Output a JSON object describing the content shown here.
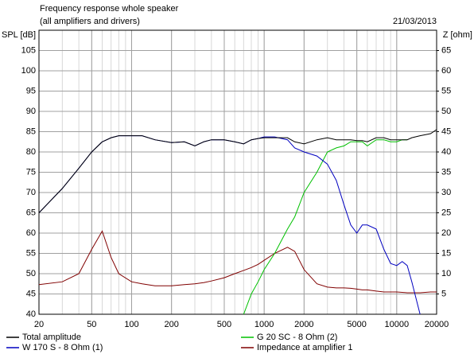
{
  "chart_data": {
    "type": "line",
    "title": "Frequency response whole speaker",
    "subtitle": "(all amplifiers and drivers)",
    "date": "21/03/2013",
    "y_label": "SPL [dB]",
    "y2_label": "Z [ohm]",
    "x_scale": "log",
    "grid": true,
    "legend": "bottom",
    "x": [
      20,
      30,
      40,
      50,
      60,
      70,
      80,
      100,
      120,
      150,
      200,
      250,
      300,
      350,
      400,
      500,
      600,
      700,
      800,
      900,
      1000,
      1200,
      1500,
      1700,
      2000,
      2500,
      3000,
      3500,
      4000,
      4500,
      5000,
      5500,
      6000,
      7000,
      8000,
      9000,
      10000,
      11000,
      12000,
      13000,
      15000,
      18000,
      20000
    ],
    "xlim": [
      20,
      20000
    ],
    "xticks": [
      20,
      50,
      100,
      200,
      500,
      1000,
      2000,
      5000,
      10000,
      20000
    ],
    "ylim": [
      40,
      110
    ],
    "yticks": [
      40,
      45,
      50,
      55,
      60,
      65,
      70,
      75,
      80,
      85,
      90,
      95,
      100,
      105
    ],
    "y2lim": [
      0,
      70
    ],
    "y2ticks": [
      5,
      10,
      15,
      20,
      25,
      30,
      35,
      40,
      45,
      50,
      55,
      60,
      65
    ],
    "series": [
      {
        "name": "Total amplitude",
        "color": "#000000",
        "values": [
          65,
          71,
          76,
          80,
          82.5,
          83.5,
          84,
          84,
          84,
          83,
          82.3,
          82.5,
          81.5,
          82.5,
          83,
          83,
          82.5,
          82,
          83,
          83.3,
          83.5,
          83.5,
          83.5,
          82.5,
          82,
          83,
          83.5,
          83,
          83,
          83,
          82.8,
          82.8,
          82.5,
          83.5,
          83.5,
          83,
          83,
          83,
          83,
          83.5,
          84,
          84.5,
          85.5
        ]
      },
      {
        "name": "G 20 SC - 8 Ohm (2)",
        "color": "#00c000",
        "values": [
          null,
          null,
          null,
          null,
          null,
          null,
          null,
          null,
          null,
          null,
          null,
          null,
          null,
          null,
          null,
          null,
          null,
          40,
          45,
          48,
          51,
          55,
          61,
          64,
          70,
          75,
          80,
          81,
          81.5,
          82.5,
          82.5,
          82.5,
          81.5,
          83,
          83,
          82.5,
          82.5,
          83,
          83,
          null,
          null,
          null,
          null
        ]
      },
      {
        "name": "W 170 S - 8 Ohm (1)",
        "color": "#0000c0",
        "values": [
          65,
          71,
          76,
          80,
          82.5,
          83.5,
          84,
          84,
          84,
          83,
          82.3,
          82.5,
          81.5,
          82.5,
          83,
          83,
          82.5,
          82,
          83,
          83.3,
          83.7,
          83.7,
          83,
          81,
          80,
          79,
          77,
          73,
          67,
          62,
          60,
          62,
          62,
          61,
          56,
          52.5,
          52,
          53,
          52,
          48,
          40,
          null,
          null
        ]
      },
      {
        "name": "Impedance at amplifier 1",
        "color": "#800000",
        "axis": "y2",
        "values": [
          7.3,
          8,
          10,
          16,
          20.5,
          14,
          10,
          8,
          7.5,
          7,
          7,
          7.3,
          7.5,
          7.8,
          8.2,
          9,
          10,
          10.8,
          11.5,
          12.3,
          13.3,
          15,
          16.5,
          15.5,
          11,
          7.5,
          6.7,
          6.5,
          6.5,
          6.4,
          6.2,
          6,
          6,
          5.7,
          5.5,
          5.5,
          5.5,
          5.4,
          5.3,
          5.3,
          5.3,
          5.5,
          5.5
        ]
      }
    ]
  }
}
